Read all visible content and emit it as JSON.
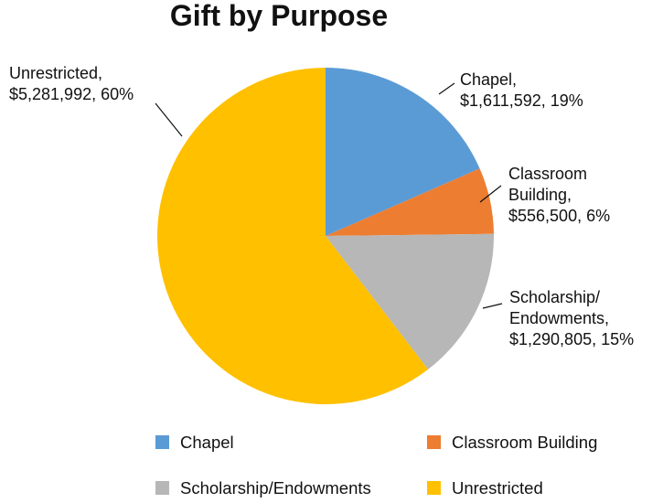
{
  "chart_data": {
    "type": "pie",
    "title": "Gift by Purpose",
    "start_angle_deg": 0,
    "direction": "clockwise",
    "slices": [
      {
        "name": "Chapel",
        "value": 1611592,
        "percent": 19,
        "color": "#5B9BD5",
        "label_lines": [
          "Chapel,",
          "$1,611,592, 19%"
        ]
      },
      {
        "name": "Classroom Building",
        "value": 556500,
        "percent": 6,
        "color": "#ED7D31",
        "label_lines": [
          "Classroom",
          "Building,",
          "$556,500, 6%"
        ]
      },
      {
        "name": "Scholarship/Endowments",
        "value": 1290805,
        "percent": 15,
        "color": "#B7B7B7",
        "label_lines": [
          "Scholarship/",
          "Endowments,",
          "$1,290,805, 15%"
        ]
      },
      {
        "name": "Unrestricted",
        "value": 5281992,
        "percent": 60,
        "color": "#FFC000",
        "label_lines": [
          "Unrestricted,",
          "$5,281,992, 60%"
        ]
      }
    ],
    "legend": {
      "position": "bottom",
      "items": [
        "Chapel",
        "Classroom Building",
        "Scholarship/Endowments",
        "Unrestricted"
      ]
    }
  }
}
